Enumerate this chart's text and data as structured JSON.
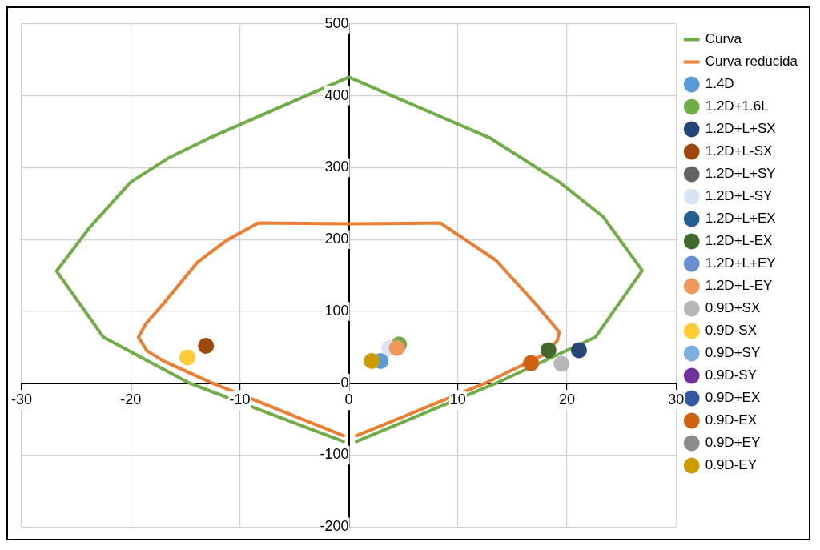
{
  "chart_data": {
    "type": "scatter",
    "xlim": [
      -30,
      30
    ],
    "ylim": [
      -200,
      500
    ],
    "xticks": [
      -30,
      -20,
      -10,
      0,
      10,
      20,
      30
    ],
    "yticks": [
      -200,
      -100,
      0,
      100,
      200,
      300,
      400,
      500
    ],
    "grid": true,
    "legend": "right",
    "marker": "circle",
    "series": [
      {
        "name": "Curva",
        "type": "line",
        "marker": "none",
        "color": "#70ad47",
        "x": [
          -0.5,
          -14.6,
          -22.5,
          -26.8,
          -23.7,
          -20.0,
          -16.6,
          -12.7,
          0,
          13.0,
          19.3,
          23.3,
          26.9,
          22.6,
          13.5,
          0.7
        ],
        "values": [
          -81,
          0,
          64,
          156,
          218,
          280,
          313,
          342,
          426,
          341,
          280,
          232,
          157,
          64,
          0,
          -81
        ]
      },
      {
        "name": "Curva reducida",
        "type": "line",
        "marker": "none",
        "color": "#ed7d31",
        "x": [
          -0.5,
          -12.5,
          -17.0,
          -18.5,
          -19.3,
          -18.6,
          -17.1,
          -13.9,
          -11.2,
          -8.3,
          0,
          8.4,
          13.5,
          17.2,
          19.3,
          19.1,
          17.9,
          12.5,
          0.7
        ],
        "values": [
          -73,
          0,
          31,
          45,
          64,
          83,
          109,
          168,
          199,
          223,
          222,
          223,
          171,
          109,
          71,
          59,
          40,
          0,
          -73
        ]
      },
      {
        "name": "1.4D",
        "color": "#5b9bd5",
        "x": [
          2.9
        ],
        "values": [
          31
        ]
      },
      {
        "name": "1.2D+1.6L",
        "color": "#70ad47",
        "x": [
          4.6
        ],
        "values": [
          54
        ]
      },
      {
        "name": "1.2D+L+SX",
        "color": "#264478",
        "x": [
          21.1
        ],
        "values": [
          46
        ]
      },
      {
        "name": "1.2D+L-SX",
        "color": "#9e480e",
        "x": [
          -13.1
        ],
        "values": [
          52
        ]
      },
      {
        "name": "1.2D+L+SY",
        "color": "#636363",
        "x": [
          null
        ],
        "values": [
          null
        ]
      },
      {
        "name": "1.2D+L-SY",
        "color": "#dae3f3",
        "x": [
          3.7
        ],
        "values": [
          49
        ]
      },
      {
        "name": "1.2D+L+EX",
        "color": "#255e91",
        "x": [
          null
        ],
        "values": [
          null
        ]
      },
      {
        "name": "1.2D+L-EX",
        "color": "#43682b",
        "x": [
          18.3
        ],
        "values": [
          46
        ]
      },
      {
        "name": "1.2D+L+EY",
        "color": "#698ed0",
        "x": [
          null
        ],
        "values": [
          null
        ]
      },
      {
        "name": "1.2D+L-EY",
        "color": "#f1975a",
        "x": [
          4.4
        ],
        "values": [
          49
        ]
      },
      {
        "name": "0.9D+SX",
        "color": "#b7b7b7",
        "x": [
          19.5
        ],
        "values": [
          27
        ]
      },
      {
        "name": "0.9D-SX",
        "color": "#ffcd33",
        "x": [
          -14.8
        ],
        "values": [
          36
        ]
      },
      {
        "name": "0.9D+SY",
        "color": "#7cafdd",
        "x": [
          null
        ],
        "values": [
          null
        ]
      },
      {
        "name": "0.9D-SY",
        "color": "#7030a0",
        "x": [
          null
        ],
        "values": [
          null
        ]
      },
      {
        "name": "0.9D+EX",
        "color": "#335aa1",
        "x": [
          null
        ],
        "values": [
          null
        ]
      },
      {
        "name": "0.9D-EX",
        "color": "#d26012",
        "x": [
          16.7
        ],
        "values": [
          28
        ]
      },
      {
        "name": "0.9D+EY",
        "color": "#8b8b8b",
        "x": [
          null
        ],
        "values": [
          null
        ]
      },
      {
        "name": "0.9D-EY",
        "color": "#cc9c00",
        "x": [
          2.1
        ],
        "values": [
          31
        ]
      }
    ]
  }
}
